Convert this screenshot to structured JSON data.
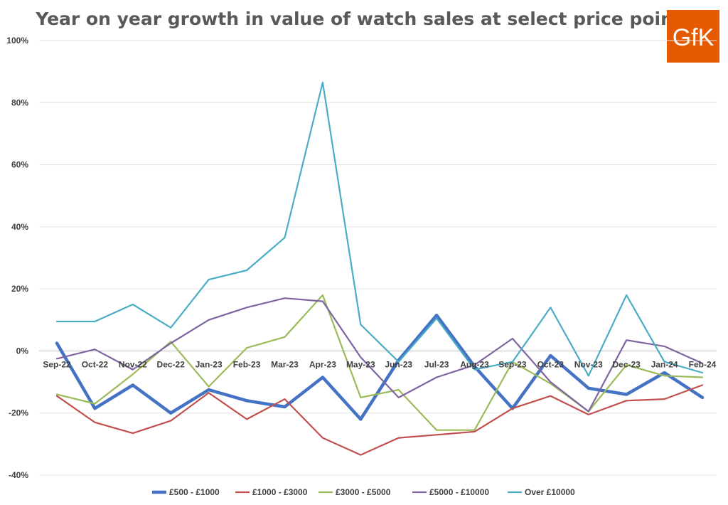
{
  "brand": {
    "logo_text": "GfK",
    "logo_color": "#E55A00"
  },
  "chart_data": {
    "type": "line",
    "title": "Year on year growth in value of watch sales at select price points",
    "xlabel": "",
    "ylabel": "",
    "categories": [
      "Sep-22",
      "Oct-22",
      "Nov-22",
      "Dec-22",
      "Jan-23",
      "Feb-23",
      "Mar-23",
      "Apr-23",
      "May-23",
      "Jun-23",
      "Jul-23",
      "Aug-23",
      "Sep-23",
      "Oct-23",
      "Nov-23",
      "Dec-23",
      "Jan-24",
      "Feb-24"
    ],
    "ylim": [
      -40,
      100
    ],
    "yticks": [
      -40,
      -20,
      0,
      20,
      40,
      60,
      80,
      100
    ],
    "ytick_labels": [
      "-40%",
      "-20%",
      "0%",
      "20%",
      "40%",
      "60%",
      "80%",
      "100%"
    ],
    "grid": true,
    "legend_position": "bottom",
    "series": [
      {
        "name": "£500 - £1000",
        "color": "#4472C4",
        "values": [
          2.5,
          -18.5,
          -11,
          -20,
          -12.5,
          -16,
          -18,
          -8.5,
          -22,
          -3,
          11.5,
          -5,
          -18.5,
          -1.5,
          -12,
          -14,
          -7,
          -15
        ]
      },
      {
        "name": "£1000 - £3000",
        "color": "#C0504D",
        "values": [
          -14.5,
          -23,
          -26.5,
          -22.5,
          -13.5,
          -22,
          -15.5,
          -28,
          -33.5,
          -28,
          -27,
          -26,
          -18.5,
          -14.5,
          -20.5,
          -16,
          -15.5,
          -11
        ]
      },
      {
        "name": "£3000 - £5000",
        "color": "#9BBB59",
        "values": [
          -14,
          -17,
          -7.5,
          3,
          -11.5,
          1,
          4.5,
          18,
          -15,
          -12.5,
          -25.5,
          -25.5,
          -3.5,
          -10.5,
          -19.5,
          -4.5,
          -8,
          -8.5
        ]
      },
      {
        "name": "£5000 - £10000",
        "color": "#8064A2",
        "values": [
          -2.5,
          0.5,
          -6,
          2.5,
          10,
          14,
          17,
          16,
          -2,
          -15,
          -8.5,
          -4.5,
          4,
          -10,
          -19.5,
          3.5,
          1.5,
          -4
        ]
      },
      {
        "name": "Over £10000",
        "color": "#4BACC6",
        "values": [
          9.5,
          9.5,
          15,
          7.5,
          23,
          26,
          36.5,
          86.5,
          8.5,
          -3.5,
          10.5,
          -6,
          -3.5,
          14,
          -8,
          18,
          -3.5,
          -7
        ]
      }
    ]
  }
}
